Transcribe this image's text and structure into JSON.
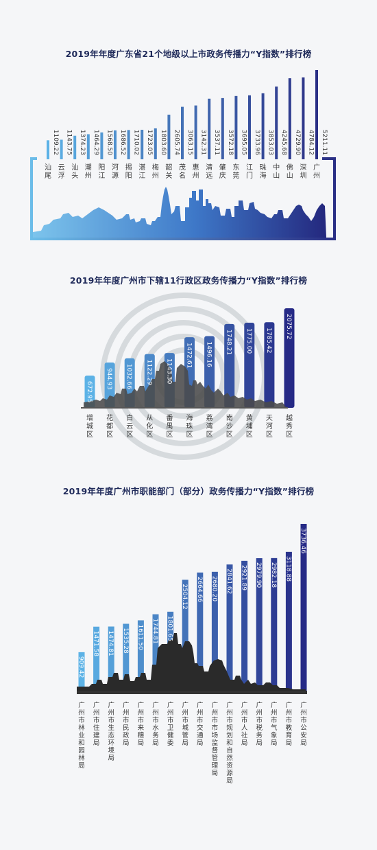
{
  "chart_data": [
    {
      "type": "bar",
      "title": "2019年年度广东省21个地级以上市政务传播力“Y指数”排行榜",
      "categories": [
        "汕尾",
        "云浮",
        "汕头",
        "潮州",
        "阳江",
        "河源",
        "揭阳",
        "湛江",
        "梅州",
        "韶关",
        "茂名",
        "惠州",
        "清远",
        "肇庆",
        "东莞",
        "江门",
        "珠海",
        "中山",
        "佛山",
        "深圳",
        "广州"
      ],
      "values": [
        1109.22,
        1143.75,
        1374.23,
        1464.29,
        1568.5,
        1686.52,
        1710.02,
        1723.05,
        1803.6,
        2605.74,
        3063.15,
        3142.31,
        3537.11,
        3572.18,
        3695.05,
        3733.96,
        3853.03,
        4245.68,
        4729.9,
        4784.12,
        5211.11
      ],
      "value_labels": [
        "1109.22",
        "1143.75",
        "1374.23",
        "1464.29",
        "1568.50",
        "1686.52",
        "1710.02",
        "1723.05",
        "1803.60",
        "2605.74",
        "3063.15",
        "3142.31",
        "3537.11",
        "3572.18",
        "3695.05",
        "3733.96",
        "3853.03",
        "4245.68",
        "4729.90",
        "4784.12",
        "5211.11"
      ],
      "colors": {
        "start": "#5cb2e6",
        "end": "#2a2f85"
      }
    },
    {
      "type": "bar",
      "title": "2019年年度广州市下辖11行政区政务传播力“Y指数”排行榜",
      "categories": [
        "增城区",
        "花都区",
        "白云区",
        "从化区",
        "番禺区",
        "海珠区",
        "荔湾区",
        "南沙区",
        "黄埔区",
        "天河区",
        "越秀区"
      ],
      "values": [
        672.95,
        944.93,
        1032.66,
        1122.29,
        1143.3,
        1472.61,
        1496.16,
        1748.21,
        1775.0,
        1785.42,
        2075.72
      ],
      "value_labels": [
        "672.95",
        "944.93",
        "1032.66",
        "1122.29",
        "1143.30",
        "1472.61",
        "1496.16",
        "1748.21",
        "1775.00",
        "1785.42",
        "2075.72"
      ],
      "colors": {
        "start": "#5cb2e6",
        "end": "#262a86"
      }
    },
    {
      "type": "bar",
      "title": "2019年年度广州市职能部门（部分）政务传播力“Y指数”排行榜",
      "categories": [
        "广州市林业和园林局",
        "广州市住建局",
        "广州市生态环境局",
        "广州市民政局",
        "广州市来穗局",
        "广州市水务局",
        "广州市卫健委",
        "广州市城管局",
        "广州市交通局",
        "广州市市场监督管理局",
        "广州市规划和自然资源局",
        "广州市人社局",
        "广州市税务局",
        "广州市气象局",
        "广州市教育局",
        "广州市公安局"
      ],
      "values": [
        909.42,
        1471.58,
        1474.81,
        1535.28,
        1611.5,
        1744.81,
        1801.65,
        2504.12,
        2664.66,
        2680.2,
        2841.62,
        2921.89,
        2979.9,
        2982.18,
        3118.88,
        3736.46
      ],
      "value_labels": [
        "909.42",
        "1471.58",
        "1474.81",
        "1535.28",
        "1611.50",
        "1744.81",
        "1801.65",
        "2504.12",
        "2664.66",
        "2680.20",
        "2841.62",
        "2921.89",
        "2979.90",
        "2982.18",
        "3118.88",
        "3736.46"
      ],
      "colors": {
        "start": "#5cb2e6",
        "end": "#262a86"
      }
    }
  ]
}
